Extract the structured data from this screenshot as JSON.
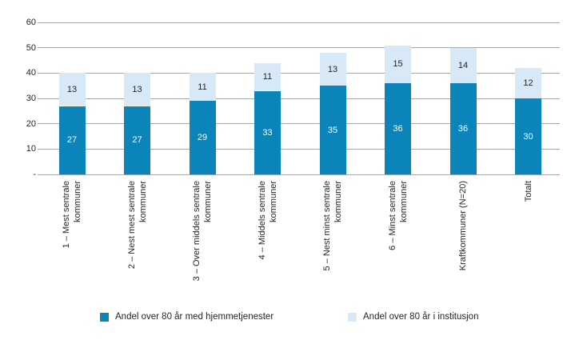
{
  "chart_data": {
    "type": "bar",
    "stacked": true,
    "orientation": "vertical",
    "categories": [
      "1 – Mest sentrale kommuner",
      "2 – Nest mest sentrale kommuner",
      "3 – Over middels sentrale kommuner",
      "4 – Middels sentrale kommuner",
      "5 – Nest minst sentrale kommuner",
      "6 – Minst sentrale kommuner",
      "Kraftkommuner (N=20)",
      "Totalt"
    ],
    "category_lines": [
      [
        "1 – Mest sentrale",
        "kommuner"
      ],
      [
        "2 – Nest mest sentrale",
        "kommuner"
      ],
      [
        "3 – Over middels sentrale",
        "kommuner"
      ],
      [
        "4 – Middels sentrale",
        "kommuner"
      ],
      [
        "5 – Nest minst sentrale",
        "kommuner"
      ],
      [
        "6 – Minst sentrale",
        "kommuner"
      ],
      [
        "Kraftkommuner (N=20)"
      ],
      [
        "Totalt"
      ]
    ],
    "series": [
      {
        "name": "Andel over 80 år med hjemmetjenester",
        "values": [
          27,
          27,
          29,
          33,
          35,
          36,
          36,
          30
        ],
        "color": "#0a84b9",
        "label_color": "#ffffff"
      },
      {
        "name": "Andel over 80 år i institusjon",
        "values": [
          13,
          13,
          11,
          11,
          13,
          15,
          14,
          12
        ],
        "color": "#d7e8f6",
        "label_color": "#262626"
      }
    ],
    "totals": [
      40,
      40,
      40,
      44,
      48,
      51,
      50,
      42
    ],
    "ylim": [
      0,
      60
    ],
    "yticks": [
      {
        "value": 0,
        "label": "-"
      },
      {
        "value": 10,
        "label": "10"
      },
      {
        "value": 20,
        "label": "20"
      },
      {
        "value": 30,
        "label": "30"
      },
      {
        "value": 40,
        "label": "40"
      },
      {
        "value": 50,
        "label": "50"
      },
      {
        "value": 60,
        "label": "60"
      }
    ],
    "grid": true,
    "legend_position": "bottom",
    "colors": {
      "grid": "#a8a8a8",
      "text": "#262626"
    }
  }
}
